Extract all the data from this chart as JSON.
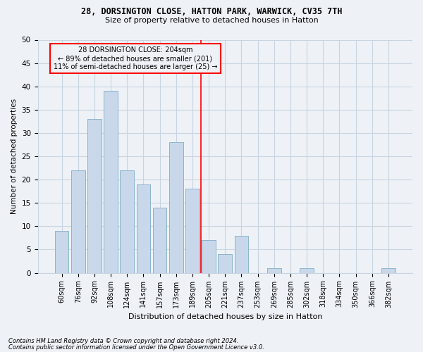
{
  "title1": "28, DORSINGTON CLOSE, HATTON PARK, WARWICK, CV35 7TH",
  "title2": "Size of property relative to detached houses in Hatton",
  "xlabel": "Distribution of detached houses by size in Hatton",
  "ylabel": "Number of detached properties",
  "categories": [
    "60sqm",
    "76sqm",
    "92sqm",
    "108sqm",
    "124sqm",
    "141sqm",
    "157sqm",
    "173sqm",
    "189sqm",
    "205sqm",
    "221sqm",
    "237sqm",
    "253sqm",
    "269sqm",
    "285sqm",
    "302sqm",
    "318sqm",
    "334sqm",
    "350sqm",
    "366sqm",
    "382sqm"
  ],
  "values": [
    9,
    22,
    33,
    39,
    22,
    19,
    14,
    28,
    18,
    7,
    4,
    8,
    0,
    1,
    0,
    1,
    0,
    0,
    0,
    0,
    1
  ],
  "bar_color": "#c8d8ea",
  "bar_edge_color": "#8ab4cc",
  "annotation_line1": "28 DORSINGTON CLOSE: 204sqm",
  "annotation_line2": "← 89% of detached houses are smaller (201)",
  "annotation_line3": "11% of semi-detached houses are larger (25) →",
  "ylim": [
    0,
    50
  ],
  "yticks": [
    0,
    5,
    10,
    15,
    20,
    25,
    30,
    35,
    40,
    45,
    50
  ],
  "footnote1": "Contains HM Land Registry data © Crown copyright and database right 2024.",
  "footnote2": "Contains public sector information licensed under the Open Government Licence v3.0.",
  "bg_color": "#eef2f7",
  "grid_color": "#c8d4e0"
}
